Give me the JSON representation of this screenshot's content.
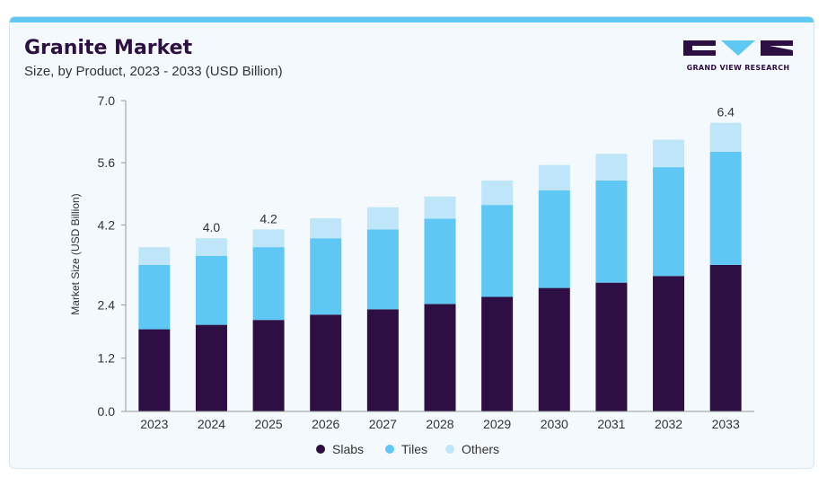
{
  "header": {
    "title": "Granite Market",
    "subtitle": "Size, by Product, 2023 - 2033 (USD Billion)"
  },
  "logo": {
    "text": "GRAND VIEW RESEARCH",
    "colors": {
      "dark": "#2d0f44",
      "accent": "#5ec7f4"
    }
  },
  "chart_data": {
    "type": "bar",
    "stacked": true,
    "categories": [
      "2023",
      "2024",
      "2025",
      "2026",
      "2027",
      "2028",
      "2029",
      "2030",
      "2031",
      "2032",
      "2033"
    ],
    "series": [
      {
        "name": "Slabs",
        "color": "#2d0f44",
        "values": [
          1.85,
          1.95,
          2.06,
          2.18,
          2.3,
          2.42,
          2.58,
          2.78,
          2.9,
          3.05,
          3.3
        ]
      },
      {
        "name": "Tiles",
        "color": "#5ec7f4",
        "values": [
          1.45,
          1.55,
          1.64,
          1.72,
          1.8,
          1.92,
          2.07,
          2.2,
          2.3,
          2.45,
          2.55
        ]
      },
      {
        "name": "Others",
        "color": "#bfe6f8",
        "values": [
          0.4,
          0.4,
          0.4,
          0.45,
          0.5,
          0.5,
          0.55,
          0.57,
          0.6,
          0.62,
          0.65
        ]
      }
    ],
    "total_labels": [
      {
        "index": 1,
        "text": "4.0"
      },
      {
        "index": 2,
        "text": "4.2"
      },
      {
        "index": 10,
        "text": "6.4"
      }
    ],
    "ylabel": "Market Size (USD Billion)",
    "xlabel": "",
    "ylim": [
      0,
      7.0
    ],
    "yticks": [
      "0.0",
      "1.2",
      "2.4",
      "4.2",
      "5.6",
      "7.0"
    ],
    "legend_position": "bottom",
    "grid": false
  }
}
